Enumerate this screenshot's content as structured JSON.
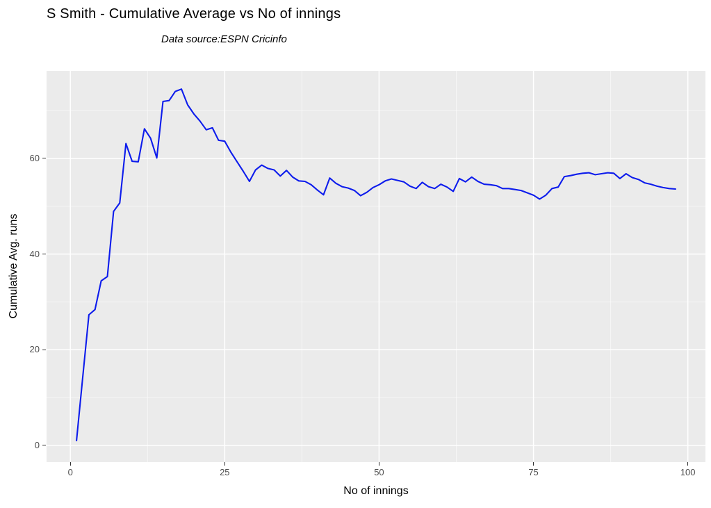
{
  "title": "S Smith - Cumulative Average vs No of innings",
  "subtitle": "Data source:ESPN Cricinfo",
  "colors": {
    "background": "#FFFFFF",
    "panel_background": "#EBEBEB",
    "grid_major": "#FFFFFF",
    "grid_minor": "#FFFFFF",
    "line": "#0D1CEC",
    "tick_label": "#4D4D4D",
    "axis_title": "#000000",
    "tick_mark": "#333333"
  },
  "chart_data": {
    "type": "line",
    "title": "S Smith - Cumulative Average vs No of innings",
    "subtitle": "Data source:ESPN Cricinfo",
    "xlabel": "No of innings",
    "ylabel": "Cumulative Avg. runs",
    "series_name": "Cumulative average",
    "grid": true,
    "legend": false,
    "xlim": [
      -3.85,
      102.85
    ],
    "ylim": [
      -3.5,
      78.3
    ],
    "x_ticks": [
      0,
      25,
      50,
      75,
      100
    ],
    "y_ticks": [
      0,
      20,
      40,
      60
    ],
    "x_minor_ticks": [
      12.5,
      37.5,
      62.5,
      87.5
    ],
    "y_minor_ticks": [
      10,
      30,
      50,
      70
    ],
    "line_color": "#0D1CEC",
    "x": [
      1,
      2,
      3,
      4,
      5,
      6,
      7,
      8,
      9,
      10,
      11,
      12,
      13,
      14,
      15,
      16,
      17,
      18,
      19,
      20,
      21,
      22,
      23,
      24,
      25,
      26,
      27,
      28,
      29,
      30,
      31,
      32,
      33,
      34,
      35,
      36,
      37,
      38,
      39,
      40,
      41,
      42,
      43,
      44,
      45,
      46,
      47,
      48,
      49,
      50,
      51,
      52,
      53,
      54,
      55,
      56,
      57,
      58,
      59,
      60,
      61,
      62,
      63,
      64,
      65,
      66,
      67,
      68,
      69,
      70,
      71,
      72,
      73,
      74,
      75,
      76,
      77,
      78,
      79,
      80,
      81,
      82,
      83,
      84,
      85,
      86,
      87,
      88,
      89,
      90,
      91,
      92,
      93,
      94,
      95,
      96,
      97,
      98
    ],
    "y": [
      1.0,
      14.2,
      27.3,
      28.4,
      34.4,
      35.3,
      48.9,
      50.7,
      63.1,
      59.4,
      59.3,
      66.2,
      64.2,
      60.1,
      71.9,
      72.1,
      74.0,
      74.5,
      71.2,
      69.3,
      67.8,
      66.0,
      66.4,
      63.8,
      63.6,
      61.3,
      59.3,
      57.3,
      55.2,
      57.6,
      58.6,
      57.9,
      57.6,
      56.3,
      57.5,
      56.1,
      55.3,
      55.2,
      54.5,
      53.4,
      52.4,
      55.9,
      54.8,
      54.1,
      53.8,
      53.3,
      52.2,
      52.9,
      53.9,
      54.5,
      55.3,
      55.7,
      55.4,
      55.1,
      54.2,
      53.7,
      55.0,
      54.1,
      53.7,
      54.6,
      54.0,
      53.1,
      55.8,
      55.1,
      56.1,
      55.2,
      54.6,
      54.5,
      54.3,
      53.7,
      53.7,
      53.5,
      53.3,
      52.8,
      52.3,
      51.5,
      52.3,
      53.7,
      54.0,
      56.2,
      56.4,
      56.7,
      56.9,
      57.0,
      56.6,
      56.8,
      57.0,
      56.9,
      55.8,
      56.8,
      56.0,
      55.6,
      54.9,
      54.6,
      54.2,
      53.9,
      53.7,
      53.6
    ]
  }
}
